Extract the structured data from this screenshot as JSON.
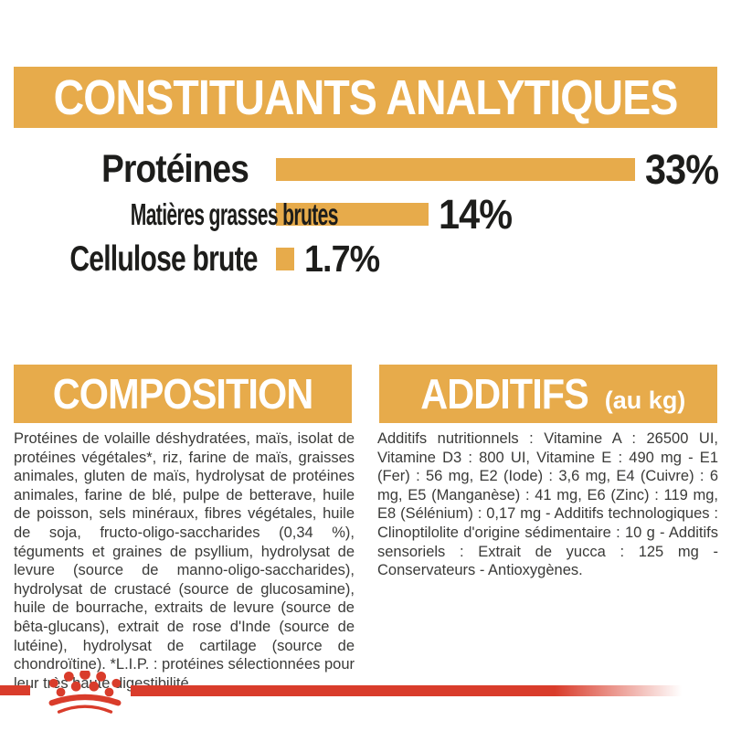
{
  "colors": {
    "gold": "#E7AB4B",
    "red": "#D93C2B",
    "label_black": "#1D1D1B",
    "body_gray": "#3A3A38",
    "header_text": "#FFFFFF"
  },
  "header": {
    "title": "CONSTITUANTS ANALYTIQUES"
  },
  "chart_data": {
    "type": "bar",
    "orientation": "horizontal",
    "title": "CONSTITUANTS ANALYTIQUES",
    "categories": [
      "Protéines",
      "Matières grasses brutes",
      "Cellulose brute"
    ],
    "values": [
      33,
      14,
      1.7
    ],
    "value_labels": [
      "33%",
      "14%",
      "1.7%"
    ],
    "xlim": [
      0,
      33
    ],
    "bar_color": "#E7AB4B",
    "grid": false,
    "legend": false
  },
  "composition": {
    "title": "COMPOSITION",
    "body": "Protéines de volaille déshydratées, maïs, isolat de protéines végétales*, riz, farine de maïs, graisses animales, gluten de maïs, hydrolysat de protéines animales, farine de blé, pulpe de betterave, huile de poisson, sels minéraux, fibres végétales, huile de soja, fructo-oligo-saccharides (0,34 %), téguments et graines de psyllium, hydrolysat de levure (source de manno-oligo-saccharides), hydrolysat de crustacé (source de glucosamine), huile de bourrache, extraits de levure (source de bêta-glucans), extrait de rose d'Inde (source de lutéine), hydrolysat de cartilage (source de chondroïtine). *L.I.P. : protéines sélectionnées pour leur très haute digestibilité."
  },
  "additives": {
    "title": "ADDITIFS",
    "title_suffix": "(au kg)",
    "body": "Additifs nutritionnels : Vitamine A : 26500 UI, Vitamine D3 : 800 UI, Vitamine E : 490 mg - E1 (Fer) : 56 mg, E2 (Iode) : 3,6 mg, E4 (Cuivre) : 6 mg, E5 (Manganèse) : 41 mg, E6 (Zinc) : 119 mg, E8 (Sélénium) : 0,17 mg - Additifs technologiques : Clinoptilolite d'origine sédimentaire : 10 g - Additifs sensoriels : Extrait de yucca : 125 mg - Conservateurs - Antioxygènes."
  },
  "footer": {
    "logo": "royal-canin-crown"
  }
}
